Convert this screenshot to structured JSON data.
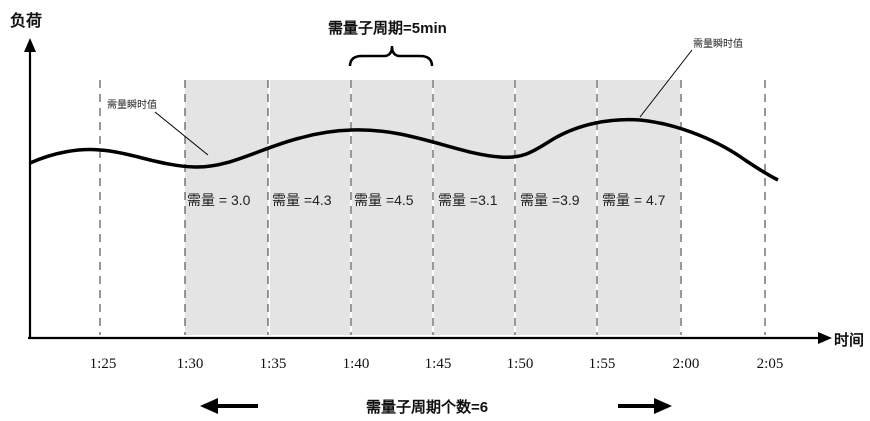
{
  "axes": {
    "y_label": "负荷",
    "x_label": "时间"
  },
  "title": "需量子周期=5min",
  "bottom_label": "需量子周期个数=6",
  "annotations": {
    "left": "需量瞬时值",
    "right": "需量瞬时值"
  },
  "ticks": [
    "1:25",
    "1:30",
    "1:35",
    "1:40",
    "1:45",
    "1:50",
    "1:55",
    "2:00",
    "2:05"
  ],
  "demand_values": [
    "需量 = 3.0",
    "需量 =4.3",
    "需量 =4.5",
    "需量 =3.1",
    "需量 =3.9",
    "需量 = 4.7"
  ],
  "colors": {
    "shade": "#e4e4e4",
    "line": "#000000",
    "dash": "#555555"
  }
}
